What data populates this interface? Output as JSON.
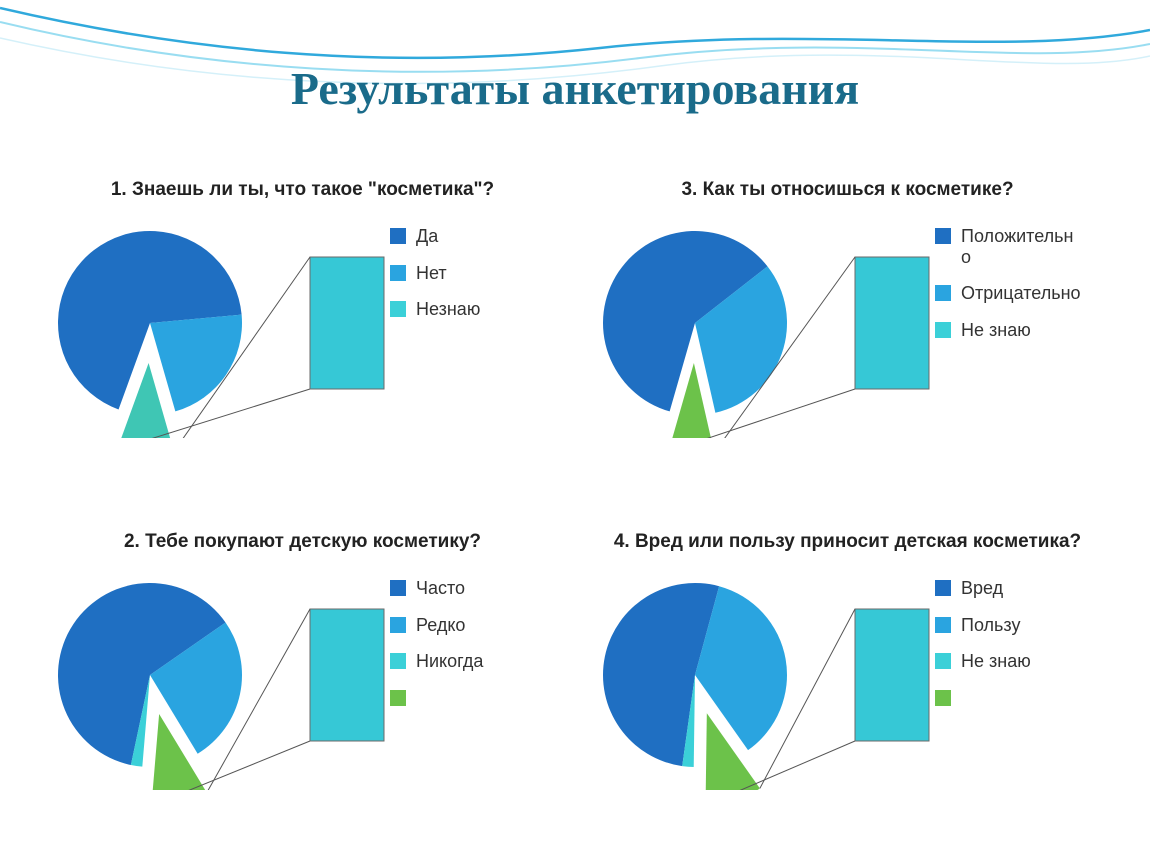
{
  "title": "Результаты анкетирования",
  "slide_background": "#ffffff",
  "title_color": "#1a6b8a",
  "title_fontsize": 46,
  "title_font": "Times New Roman",
  "question_fontsize": 19,
  "legend_fontsize": 18,
  "pie_radius": 92,
  "explode_distance": 40,
  "callout_rect": {
    "w": 74,
    "h": 132,
    "stroke": "#6a6a6a",
    "stroke_width": 1
  },
  "charts": [
    {
      "grid_pos": "1 / 1",
      "title": "1. Знаешь ли ты, что такое \"косметика\"?",
      "type": "pie_with_bar_callout",
      "slices": [
        {
          "label": "Да",
          "value": 68,
          "color": "#1f6fc2"
        },
        {
          "label": "Нет",
          "value": 22,
          "color": "#2aa4e0"
        },
        {
          "label": "Незнаю",
          "value": 10,
          "color": "#3fc6b4",
          "exploded": true,
          "callout": true
        }
      ],
      "legend": [
        {
          "label": "Да",
          "color": "#1f6fc2"
        },
        {
          "label": "Нет",
          "color": "#2aa4e0"
        },
        {
          "label": "Незнаю",
          "color": "#3bd0d8"
        }
      ],
      "start_angle": -160
    },
    {
      "grid_pos": "1 / 2",
      "title": "3. Как ты относишься к косметике?",
      "type": "pie_with_bar_callout",
      "slices": [
        {
          "label": "Положительно",
          "value": 60,
          "color": "#1f6fc2"
        },
        {
          "label": "Отрицательно",
          "value": 32,
          "color": "#2aa4e0"
        },
        {
          "label": "Не знаю",
          "value": 8,
          "color": "#6cc24a",
          "exploded": true,
          "callout": true
        }
      ],
      "legend": [
        {
          "label": "Положительно",
          "color": "#1f6fc2"
        },
        {
          "label": "Отрицательно",
          "color": "#2aa4e0"
        },
        {
          "label": "Не знаю",
          "color": "#3bd0d8"
        }
      ],
      "start_angle": -164
    },
    {
      "grid_pos": "2 / 1",
      "title": "2. Тебе покупают детскую косметику?",
      "type": "pie_with_bar_callout",
      "slices": [
        {
          "label": "Часто",
          "value": 62,
          "color": "#1f6fc2"
        },
        {
          "label": "Редко",
          "value": 26,
          "color": "#2aa4e0"
        },
        {
          "label": "Никогда",
          "value": 10,
          "color": "#6cc24a",
          "exploded": true,
          "callout": true
        },
        {
          "label": "",
          "value": 2,
          "color": "#3bd0d8"
        }
      ],
      "legend": [
        {
          "label": "Часто",
          "color": "#1f6fc2"
        },
        {
          "label": "Редко",
          "color": "#2aa4e0"
        },
        {
          "label": "Никогда",
          "color": "#3bd0d8"
        },
        {
          "label": "",
          "color": "#6cc24a"
        }
      ],
      "start_angle": -168
    },
    {
      "grid_pos": "2 / 2",
      "title": "4. Вред или пользу приносит детская косметика?",
      "type": "pie_with_bar_callout",
      "slices": [
        {
          "label": "Вред",
          "value": 52,
          "color": "#1f6fc2"
        },
        {
          "label": "Пользу",
          "value": 36,
          "color": "#2aa4e0"
        },
        {
          "label": "Не знаю",
          "value": 10,
          "color": "#6cc24a",
          "exploded": true,
          "callout": true
        },
        {
          "label": "",
          "value": 2,
          "color": "#3bd0d8"
        }
      ],
      "legend": [
        {
          "label": "Вред",
          "color": "#1f6fc2"
        },
        {
          "label": "Пользу",
          "color": "#2aa4e0"
        },
        {
          "label": "Не знаю",
          "color": "#3bd0d8"
        },
        {
          "label": "",
          "color": "#6cc24a"
        }
      ],
      "start_angle": -172
    }
  ]
}
